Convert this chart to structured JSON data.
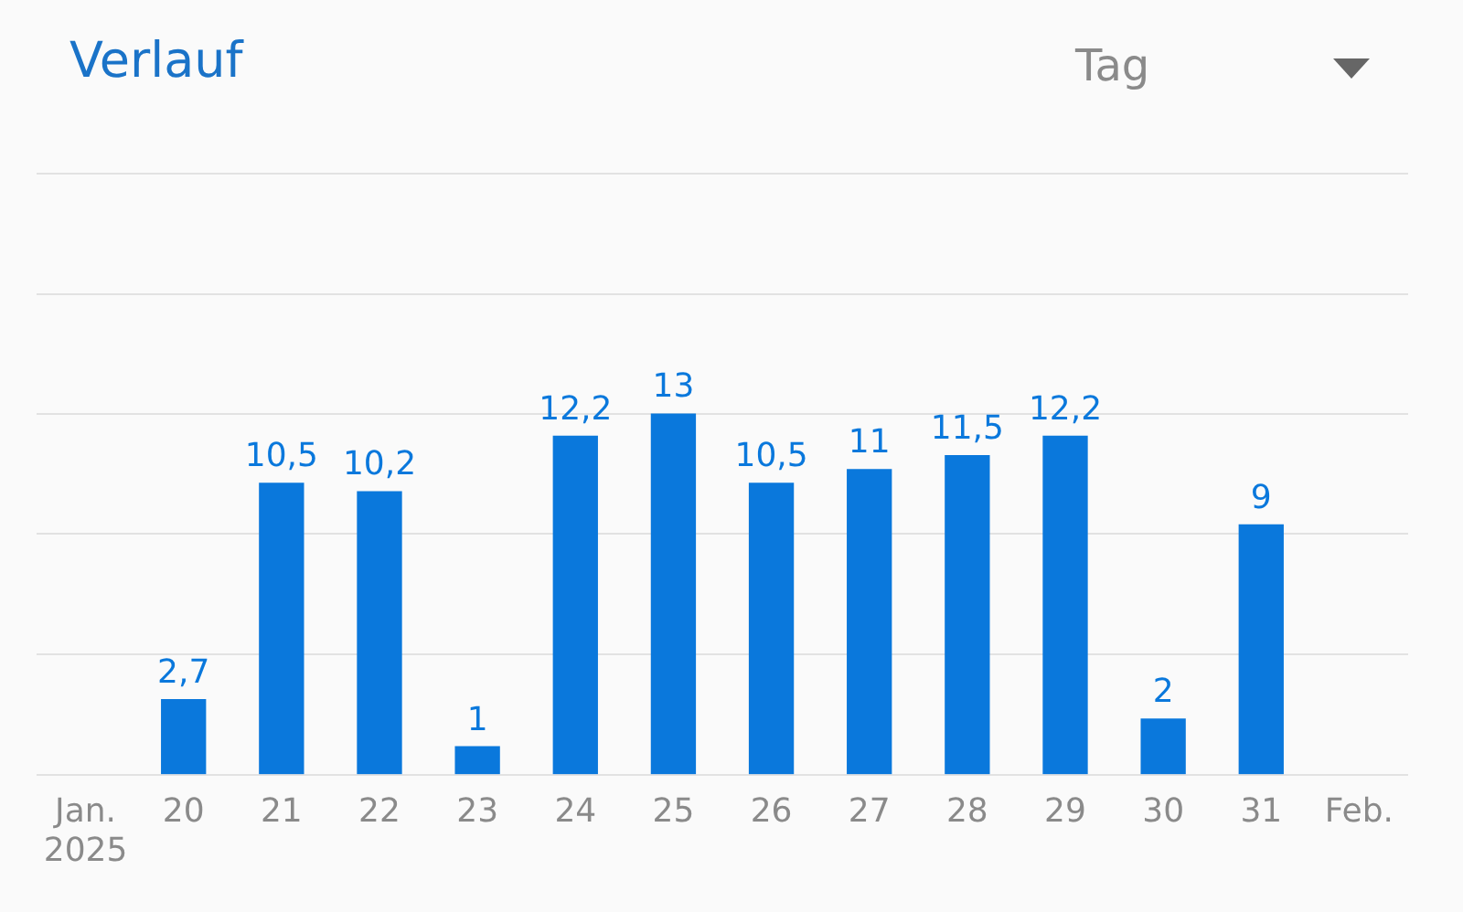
{
  "chart_data": {
    "type": "bar",
    "title": "Verlauf",
    "annotations": [
      "Tag"
    ],
    "categories": [
      "Jan.\n2025",
      "20",
      "21",
      "22",
      "23",
      "24",
      "25",
      "26",
      "27",
      "28",
      "29",
      "30",
      "31",
      "Feb."
    ],
    "values": [
      null,
      2.7,
      10.5,
      10.2,
      1,
      12.2,
      13,
      10.5,
      11,
      11.5,
      12.2,
      2,
      9,
      null
    ],
    "value_labels": [
      null,
      "2,7",
      "10,5",
      "10,2",
      "1",
      "12,2",
      "13",
      "10,5",
      "11",
      "11,5",
      "12,2",
      "2",
      "9",
      null
    ],
    "color": "#0a78dc",
    "ylim": [
      0,
      21.67
    ],
    "yticks": [
      {
        "value": 0,
        "label": null
      },
      {
        "value": 4.33,
        "label": null
      },
      {
        "value": 8.67,
        "label": null
      },
      {
        "value": 13,
        "label": null
      },
      {
        "value": 17.33,
        "label": null
      },
      {
        "value": 21.67,
        "label": null
      }
    ],
    "grid": "y",
    "tick_labels": "x",
    "legend": false
  }
}
